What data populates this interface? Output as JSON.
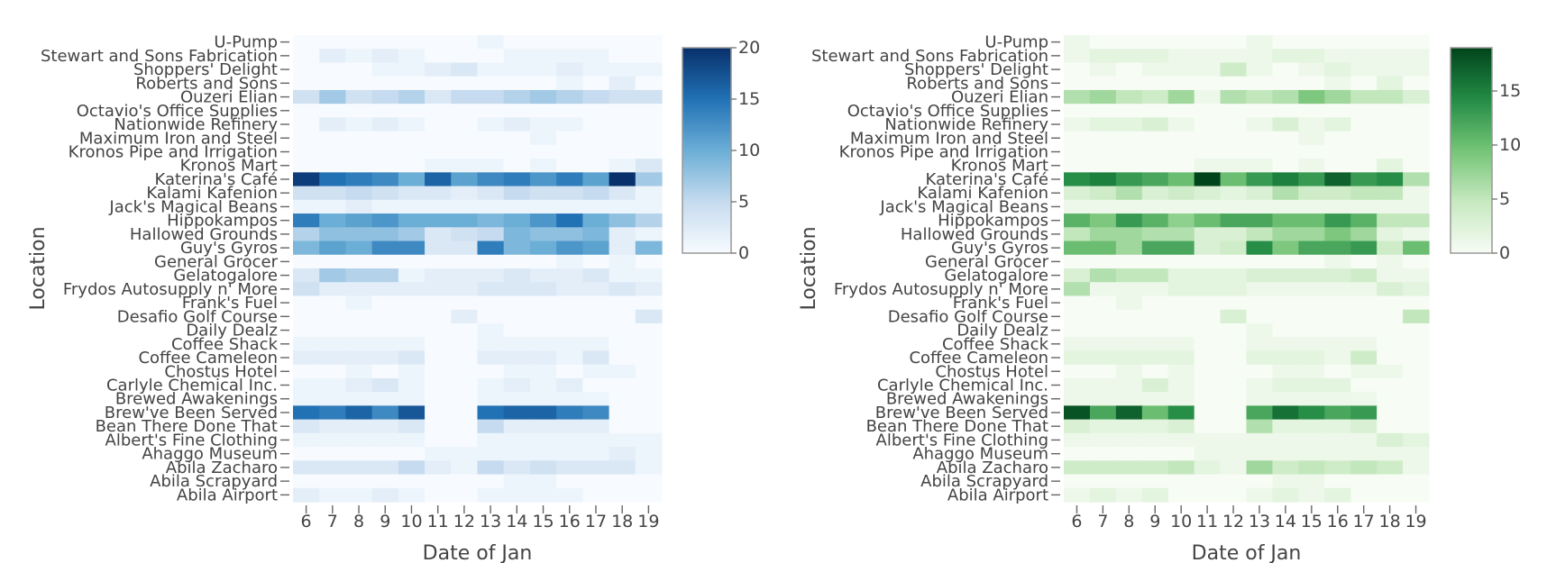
{
  "chart_data": [
    {
      "type": "heatmap",
      "title": "",
      "xlabel": "Date of Jan",
      "ylabel": "Location",
      "colorscale": "Blues",
      "colorscale_colors": [
        "#f7fbff",
        "#c6dbef",
        "#6baed6",
        "#2171b5",
        "#08306b"
      ],
      "zrange": [
        0,
        20
      ],
      "colorbar_ticks": [
        "0",
        "5",
        "10",
        "15",
        "20"
      ],
      "x": [
        "6",
        "7",
        "8",
        "9",
        "10",
        "11",
        "12",
        "13",
        "14",
        "15",
        "16",
        "17",
        "18",
        "19"
      ],
      "y": [
        "U-Pump",
        "Stewart and Sons Fabrication",
        "Shoppers' Delight",
        "Roberts and Sons",
        "Ouzeri Elian",
        "Octavio's Office Supplies",
        "Nationwide Refinery",
        "Maximum Iron and Steel",
        "Kronos Pipe and Irrigation",
        "Kronos Mart",
        "Katerina's Café",
        "Kalami Kafenion",
        "Jack's Magical Beans",
        "Hippokampos",
        "Hallowed Grounds",
        "Guy's Gyros",
        "General Grocer",
        "Gelatogalore",
        "Frydos Autosupply n' More",
        "Frank's Fuel",
        "Desafio Golf Course",
        "Daily Dealz",
        "Coffee Shack",
        "Coffee Cameleon",
        "Chostus Hotel",
        "Carlyle Chemical Inc.",
        "Brewed Awakenings",
        "Brew've Been Served",
        "Bean There Done That",
        "Albert's Fine Clothing",
        "Ahaggo Museum",
        "Abila Zacharo",
        "Abila Scrapyard",
        "Abila Airport"
      ],
      "z": [
        [
          0,
          0,
          0,
          0,
          0,
          0,
          0,
          1,
          0,
          0,
          0,
          0,
          0,
          0
        ],
        [
          0,
          2,
          1,
          2,
          1,
          0,
          0,
          0,
          1,
          1,
          1,
          1,
          0,
          0
        ],
        [
          0,
          0,
          0,
          1,
          1,
          2,
          3,
          1,
          1,
          1,
          2,
          1,
          1,
          1
        ],
        [
          0,
          0,
          0,
          0,
          0,
          0,
          0,
          0,
          0,
          0,
          1,
          0,
          2,
          0
        ],
        [
          4,
          7,
          4,
          5,
          6,
          3,
          5,
          5,
          6,
          7,
          6,
          5,
          4,
          4
        ],
        [
          0,
          0,
          0,
          0,
          0,
          0,
          0,
          0,
          0,
          0,
          0,
          0,
          0,
          0
        ],
        [
          0,
          2,
          1,
          2,
          1,
          0,
          0,
          1,
          2,
          1,
          1,
          0,
          0,
          0
        ],
        [
          0,
          0,
          0,
          0,
          0,
          0,
          0,
          0,
          0,
          1,
          0,
          0,
          0,
          0
        ],
        [
          0,
          0,
          0,
          0,
          0,
          0,
          0,
          0,
          0,
          0,
          0,
          0,
          0,
          0
        ],
        [
          0,
          0,
          0,
          0,
          0,
          1,
          1,
          1,
          0,
          1,
          0,
          0,
          1,
          3
        ],
        [
          19,
          15,
          14,
          13,
          10,
          16,
          11,
          13,
          14,
          12,
          14,
          11,
          20,
          7
        ],
        [
          4,
          4,
          5,
          4,
          3,
          3,
          2,
          3,
          5,
          4,
          4,
          5,
          3,
          1
        ],
        [
          1,
          1,
          2,
          1,
          1,
          1,
          1,
          1,
          1,
          1,
          1,
          1,
          1,
          1
        ],
        [
          14,
          10,
          11,
          12,
          10,
          10,
          10,
          9,
          10,
          12,
          15,
          10,
          8,
          6
        ],
        [
          6,
          8,
          8,
          8,
          7,
          3,
          4,
          5,
          9,
          8,
          8,
          9,
          2,
          1
        ],
        [
          9,
          11,
          10,
          13,
          13,
          3,
          3,
          14,
          9,
          10,
          12,
          11,
          2,
          9
        ],
        [
          0,
          0,
          0,
          0,
          0,
          0,
          0,
          0,
          0,
          0,
          1,
          0,
          1,
          0
        ],
        [
          3,
          7,
          6,
          6,
          1,
          2,
          2,
          2,
          3,
          2,
          2,
          3,
          1,
          1
        ],
        [
          4,
          2,
          2,
          2,
          2,
          2,
          2,
          3,
          3,
          3,
          2,
          2,
          3,
          2
        ],
        [
          0,
          0,
          1,
          0,
          0,
          0,
          0,
          0,
          0,
          0,
          0,
          0,
          0,
          0
        ],
        [
          0,
          0,
          0,
          0,
          0,
          0,
          2,
          0,
          0,
          0,
          0,
          0,
          0,
          3
        ],
        [
          0,
          0,
          0,
          0,
          0,
          0,
          0,
          1,
          0,
          0,
          0,
          0,
          0,
          0
        ],
        [
          1,
          1,
          1,
          1,
          1,
          0,
          0,
          1,
          1,
          1,
          1,
          1,
          0,
          0
        ],
        [
          2,
          2,
          2,
          2,
          3,
          0,
          0,
          2,
          2,
          2,
          1,
          3,
          0,
          0
        ],
        [
          0,
          0,
          1,
          0,
          1,
          0,
          0,
          0,
          1,
          1,
          0,
          1,
          1,
          0
        ],
        [
          1,
          1,
          2,
          3,
          1,
          0,
          0,
          1,
          2,
          1,
          2,
          0,
          0,
          0
        ],
        [
          1,
          1,
          1,
          1,
          1,
          0,
          0,
          1,
          1,
          1,
          1,
          1,
          0,
          0
        ],
        [
          15,
          14,
          16,
          13,
          17,
          0,
          0,
          15,
          16,
          16,
          14,
          13,
          0,
          0
        ],
        [
          3,
          2,
          2,
          2,
          3,
          0,
          0,
          5,
          2,
          2,
          2,
          2,
          0,
          0
        ],
        [
          1,
          1,
          1,
          1,
          1,
          0,
          0,
          1,
          1,
          1,
          1,
          1,
          1,
          1
        ],
        [
          0,
          0,
          0,
          0,
          0,
          1,
          1,
          1,
          1,
          1,
          1,
          1,
          2,
          1
        ],
        [
          3,
          3,
          3,
          3,
          5,
          2,
          1,
          5,
          3,
          4,
          3,
          3,
          3,
          1
        ],
        [
          0,
          0,
          0,
          0,
          0,
          0,
          0,
          0,
          1,
          1,
          0,
          0,
          0,
          0
        ],
        [
          2,
          1,
          1,
          2,
          1,
          0,
          0,
          1,
          1,
          1,
          1,
          0,
          0,
          0
        ]
      ]
    },
    {
      "type": "heatmap",
      "title": "",
      "xlabel": "Date of Jan",
      "ylabel": "Location",
      "colorscale": "Greens",
      "colorscale_colors": [
        "#f7fcf5",
        "#c7e9c0",
        "#74c476",
        "#238b45",
        "#00441b"
      ],
      "zrange": [
        0,
        19
      ],
      "colorbar_ticks": [
        "0",
        "5",
        "10",
        "15"
      ],
      "x": [
        "6",
        "7",
        "8",
        "9",
        "10",
        "11",
        "12",
        "13",
        "14",
        "15",
        "16",
        "17",
        "18",
        "19"
      ],
      "y": [
        "U-Pump",
        "Stewart and Sons Fabrication",
        "Shoppers' Delight",
        "Roberts and Sons",
        "Ouzeri Elian",
        "Octavio's Office Supplies",
        "Nationwide Refinery",
        "Maximum Iron and Steel",
        "Kronos Pipe and Irrigation",
        "Kronos Mart",
        "Katerina's Café",
        "Kalami Kafenion",
        "Jack's Magical Beans",
        "Hippokampos",
        "Hallowed Grounds",
        "Guy's Gyros",
        "General Grocer",
        "Gelatogalore",
        "Frydos Autosupply n' More",
        "Frank's Fuel",
        "Desafio Golf Course",
        "Daily Dealz",
        "Coffee Shack",
        "Coffee Cameleon",
        "Chostus Hotel",
        "Carlyle Chemical Inc.",
        "Brewed Awakenings",
        "Brew've Been Served",
        "Bean There Done That",
        "Albert's Fine Clothing",
        "Ahaggo Museum",
        "Abila Zacharo",
        "Abila Scrapyard",
        "Abila Airport"
      ],
      "z": [
        [
          1,
          0,
          0,
          0,
          0,
          0,
          0,
          1,
          0,
          0,
          0,
          0,
          0,
          0
        ],
        [
          1,
          2,
          2,
          2,
          1,
          1,
          1,
          1,
          2,
          2,
          1,
          1,
          1,
          1
        ],
        [
          0,
          1,
          0,
          1,
          1,
          1,
          4,
          1,
          0,
          1,
          2,
          1,
          1,
          1
        ],
        [
          0,
          0,
          0,
          0,
          0,
          0,
          0,
          0,
          0,
          0,
          1,
          0,
          2,
          0
        ],
        [
          6,
          7,
          5,
          4,
          7,
          1,
          6,
          5,
          6,
          9,
          7,
          5,
          5,
          3
        ],
        [
          0,
          0,
          0,
          0,
          0,
          0,
          0,
          0,
          0,
          0,
          0,
          0,
          0,
          0
        ],
        [
          1,
          2,
          2,
          3,
          1,
          0,
          0,
          1,
          3,
          1,
          2,
          0,
          0,
          0
        ],
        [
          0,
          0,
          0,
          0,
          0,
          0,
          0,
          0,
          0,
          1,
          0,
          0,
          0,
          0
        ],
        [
          0,
          0,
          0,
          0,
          0,
          0,
          0,
          0,
          0,
          0,
          0,
          0,
          0,
          0
        ],
        [
          0,
          0,
          0,
          0,
          0,
          1,
          1,
          1,
          0,
          1,
          0,
          0,
          2,
          0
        ],
        [
          14,
          15,
          13,
          12,
          10,
          19,
          10,
          13,
          15,
          13,
          17,
          13,
          14,
          6
        ],
        [
          3,
          4,
          6,
          3,
          4,
          3,
          2,
          3,
          6,
          4,
          4,
          5,
          5,
          1
        ],
        [
          1,
          1,
          1,
          1,
          1,
          1,
          1,
          1,
          1,
          1,
          1,
          1,
          1,
          1
        ],
        [
          11,
          9,
          13,
          11,
          8,
          10,
          12,
          12,
          10,
          10,
          13,
          11,
          5,
          5
        ],
        [
          5,
          7,
          7,
          6,
          6,
          3,
          3,
          5,
          7,
          7,
          9,
          7,
          2,
          1
        ],
        [
          10,
          10,
          7,
          12,
          12,
          3,
          4,
          14,
          9,
          12,
          12,
          13,
          4,
          10
        ],
        [
          0,
          0,
          0,
          0,
          0,
          0,
          0,
          0,
          0,
          0,
          1,
          0,
          1,
          0
        ],
        [
          3,
          6,
          5,
          5,
          2,
          2,
          2,
          3,
          3,
          3,
          3,
          4,
          1,
          1
        ],
        [
          6,
          1,
          1,
          1,
          2,
          2,
          2,
          1,
          1,
          1,
          1,
          1,
          3,
          2
        ],
        [
          0,
          0,
          1,
          0,
          0,
          0,
          0,
          0,
          0,
          0,
          0,
          0,
          0,
          0
        ],
        [
          0,
          0,
          0,
          0,
          0,
          0,
          3,
          0,
          0,
          0,
          0,
          0,
          0,
          5
        ],
        [
          0,
          0,
          0,
          0,
          0,
          0,
          0,
          1,
          0,
          0,
          0,
          0,
          0,
          0
        ],
        [
          1,
          1,
          1,
          1,
          1,
          0,
          0,
          1,
          1,
          1,
          1,
          1,
          0,
          0
        ],
        [
          2,
          2,
          2,
          2,
          2,
          0,
          0,
          2,
          2,
          2,
          1,
          4,
          0,
          0
        ],
        [
          0,
          0,
          1,
          0,
          1,
          0,
          0,
          0,
          1,
          1,
          0,
          1,
          1,
          0
        ],
        [
          1,
          1,
          1,
          3,
          1,
          0,
          0,
          1,
          2,
          2,
          2,
          0,
          0,
          0
        ],
        [
          1,
          1,
          1,
          1,
          1,
          0,
          0,
          1,
          1,
          1,
          1,
          1,
          0,
          0
        ],
        [
          18,
          12,
          17,
          10,
          14,
          0,
          0,
          12,
          16,
          14,
          12,
          13,
          0,
          0
        ],
        [
          3,
          2,
          2,
          2,
          3,
          0,
          0,
          6,
          2,
          2,
          2,
          3,
          0,
          0
        ],
        [
          1,
          1,
          1,
          1,
          1,
          1,
          1,
          1,
          1,
          1,
          1,
          1,
          3,
          2
        ],
        [
          0,
          0,
          0,
          0,
          0,
          1,
          1,
          1,
          1,
          1,
          1,
          1,
          1,
          1
        ],
        [
          4,
          4,
          4,
          4,
          5,
          2,
          1,
          7,
          4,
          5,
          4,
          5,
          4,
          1
        ],
        [
          0,
          0,
          0,
          0,
          0,
          0,
          0,
          0,
          1,
          1,
          0,
          0,
          0,
          0
        ],
        [
          1,
          2,
          1,
          2,
          0,
          0,
          0,
          1,
          2,
          1,
          2,
          0,
          0,
          0
        ]
      ]
    }
  ]
}
